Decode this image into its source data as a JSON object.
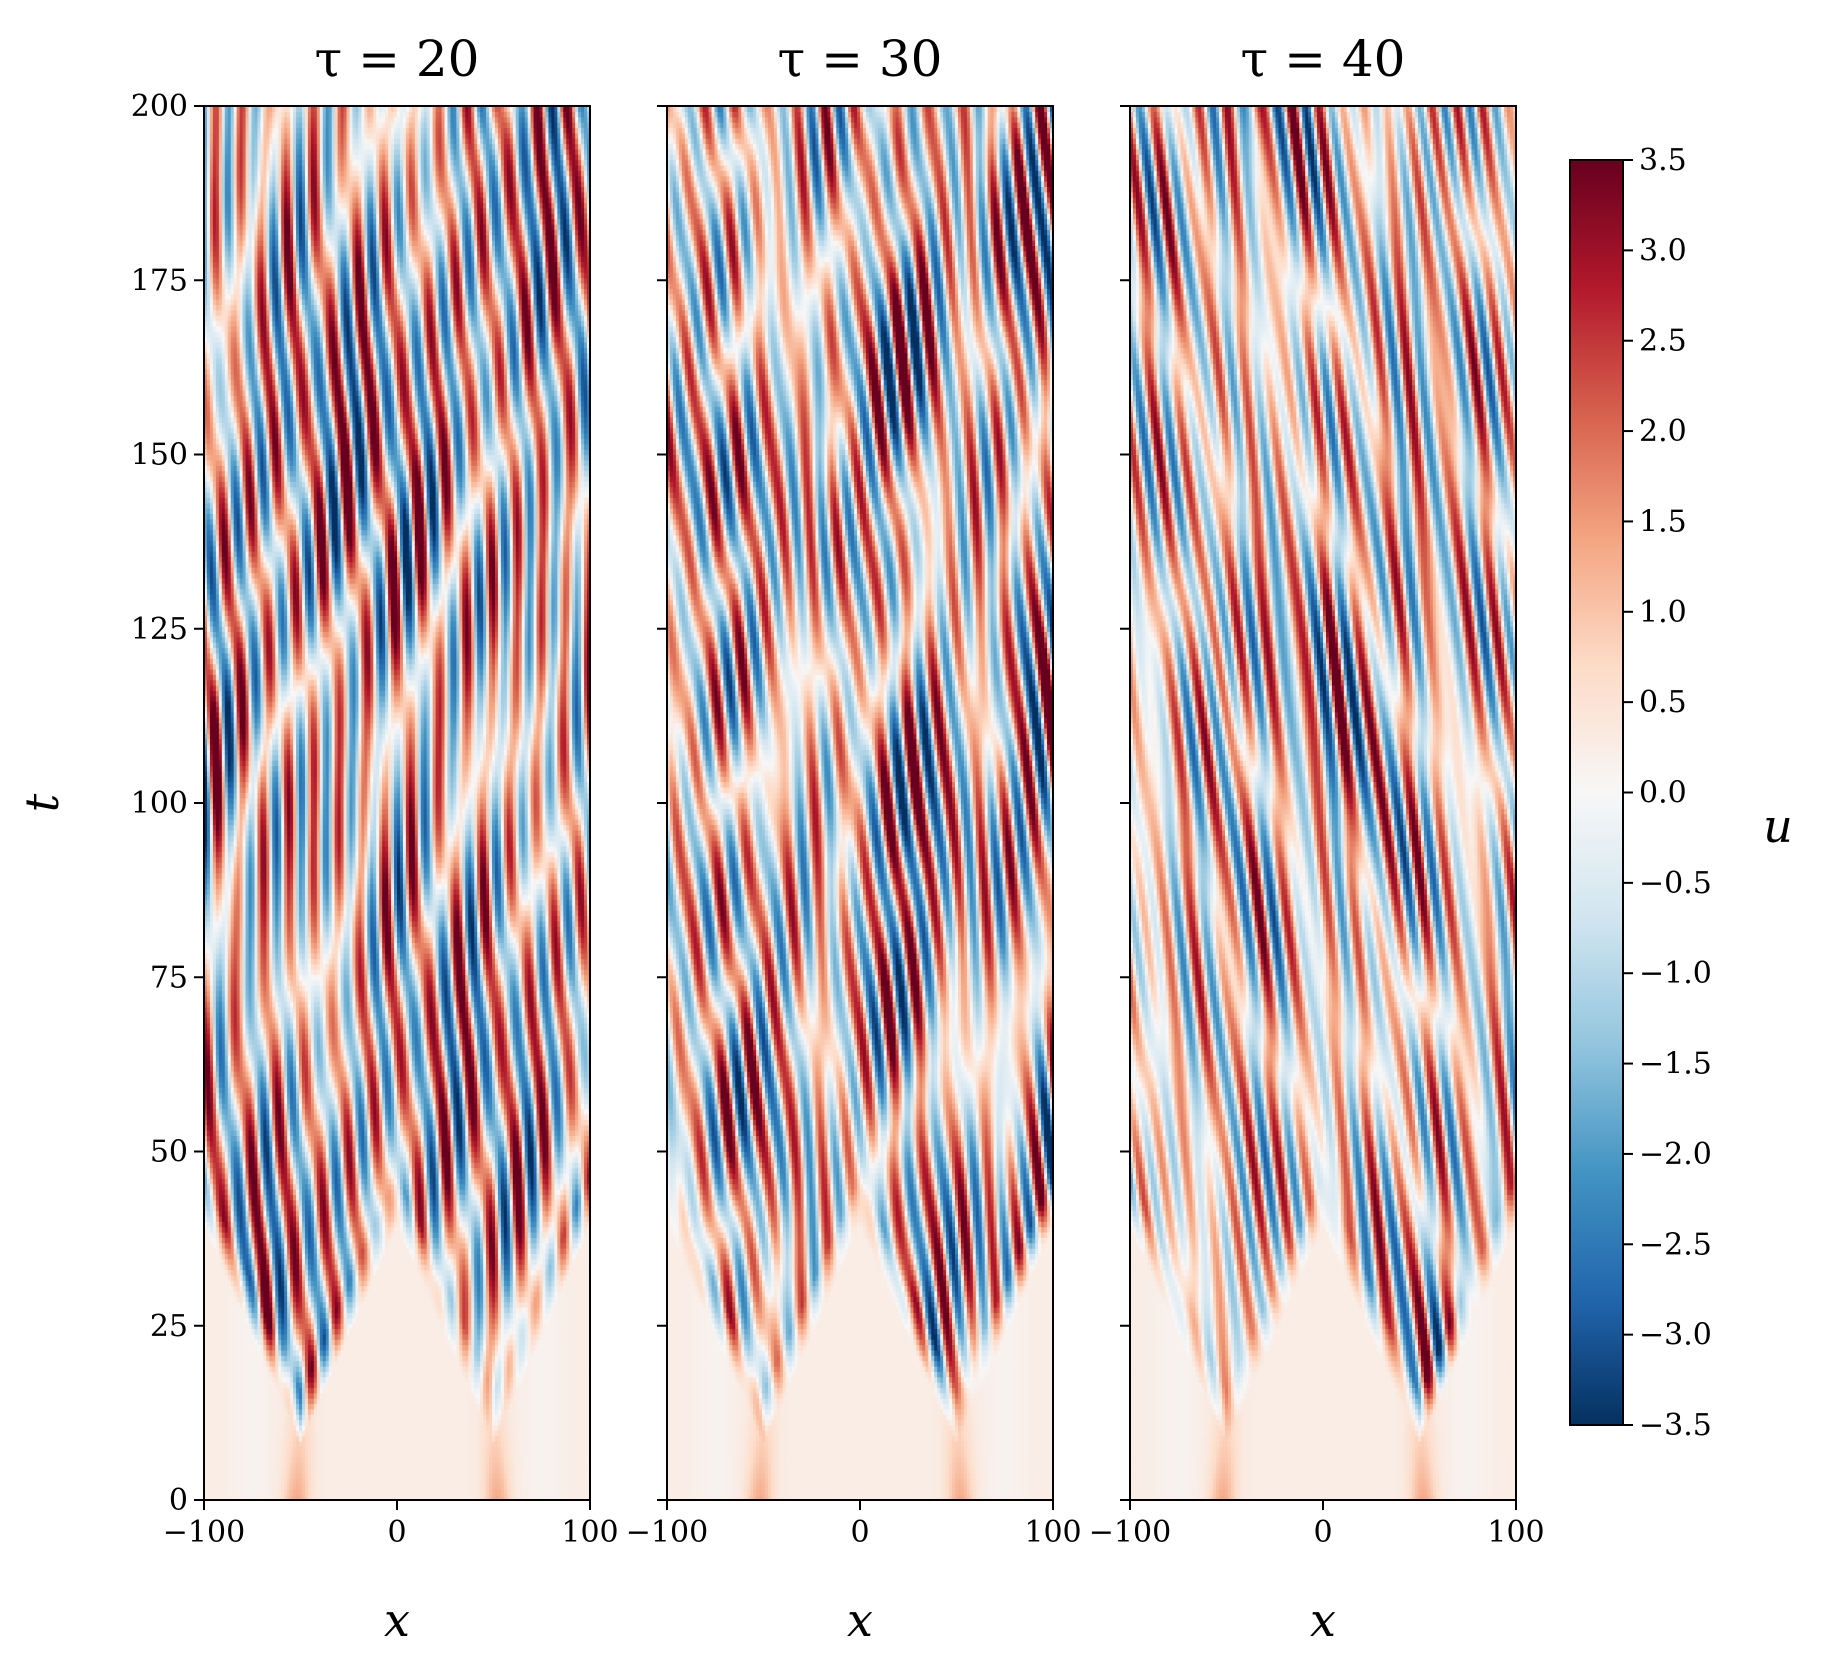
{
  "chart_data": {
    "type": "heatmap",
    "colormap": "RdBu_r",
    "colorbar": {
      "label": "u",
      "range": [
        -3.5,
        3.5
      ],
      "ticks": [
        "3.5",
        "3.0",
        "2.5",
        "2.0",
        "1.5",
        "1.0",
        "0.5",
        "0.0",
        "−0.5",
        "−1.0",
        "−1.5",
        "−2.0",
        "−2.5",
        "−3.0",
        "−3.5"
      ],
      "tick_values": [
        3.5,
        3.0,
        2.5,
        2.0,
        1.5,
        1.0,
        0.5,
        0.0,
        -0.5,
        -1.0,
        -1.5,
        -2.0,
        -2.5,
        -3.0,
        -3.5
      ]
    },
    "panels": [
      {
        "title": "τ = 20",
        "tau": 20,
        "xlabel": "x",
        "ylabel": "t",
        "xlim": [
          -100,
          100
        ],
        "ylim": [
          0,
          200
        ]
      },
      {
        "title": "τ = 30",
        "tau": 30,
        "xlabel": "x",
        "ylabel": "",
        "xlim": [
          -100,
          100
        ],
        "ylim": [
          0,
          200
        ]
      },
      {
        "title": "τ = 40",
        "tau": 40,
        "xlabel": "x",
        "ylabel": "",
        "xlim": [
          -100,
          100
        ],
        "ylim": [
          0,
          200
        ]
      }
    ],
    "x_ticks": [
      {
        "value": -100,
        "label": "−100"
      },
      {
        "value": 0,
        "label": "0"
      },
      {
        "value": 100,
        "label": "100"
      }
    ],
    "y_ticks": [
      {
        "value": 0,
        "label": "0"
      },
      {
        "value": 25,
        "label": "25"
      },
      {
        "value": 50,
        "label": "50"
      },
      {
        "value": 75,
        "label": "75"
      },
      {
        "value": 100,
        "label": "100"
      },
      {
        "value": 125,
        "label": "125"
      },
      {
        "value": 150,
        "label": "150"
      },
      {
        "value": 175,
        "label": "175"
      },
      {
        "value": 200,
        "label": "200"
      }
    ],
    "description_of_field": "Space-time evolution of u(x,t); two localized positive pulses near x=-50 and x=50 at t=0 develop into spreading oscillatory stripe pattern filling the domain by t≈50."
  }
}
